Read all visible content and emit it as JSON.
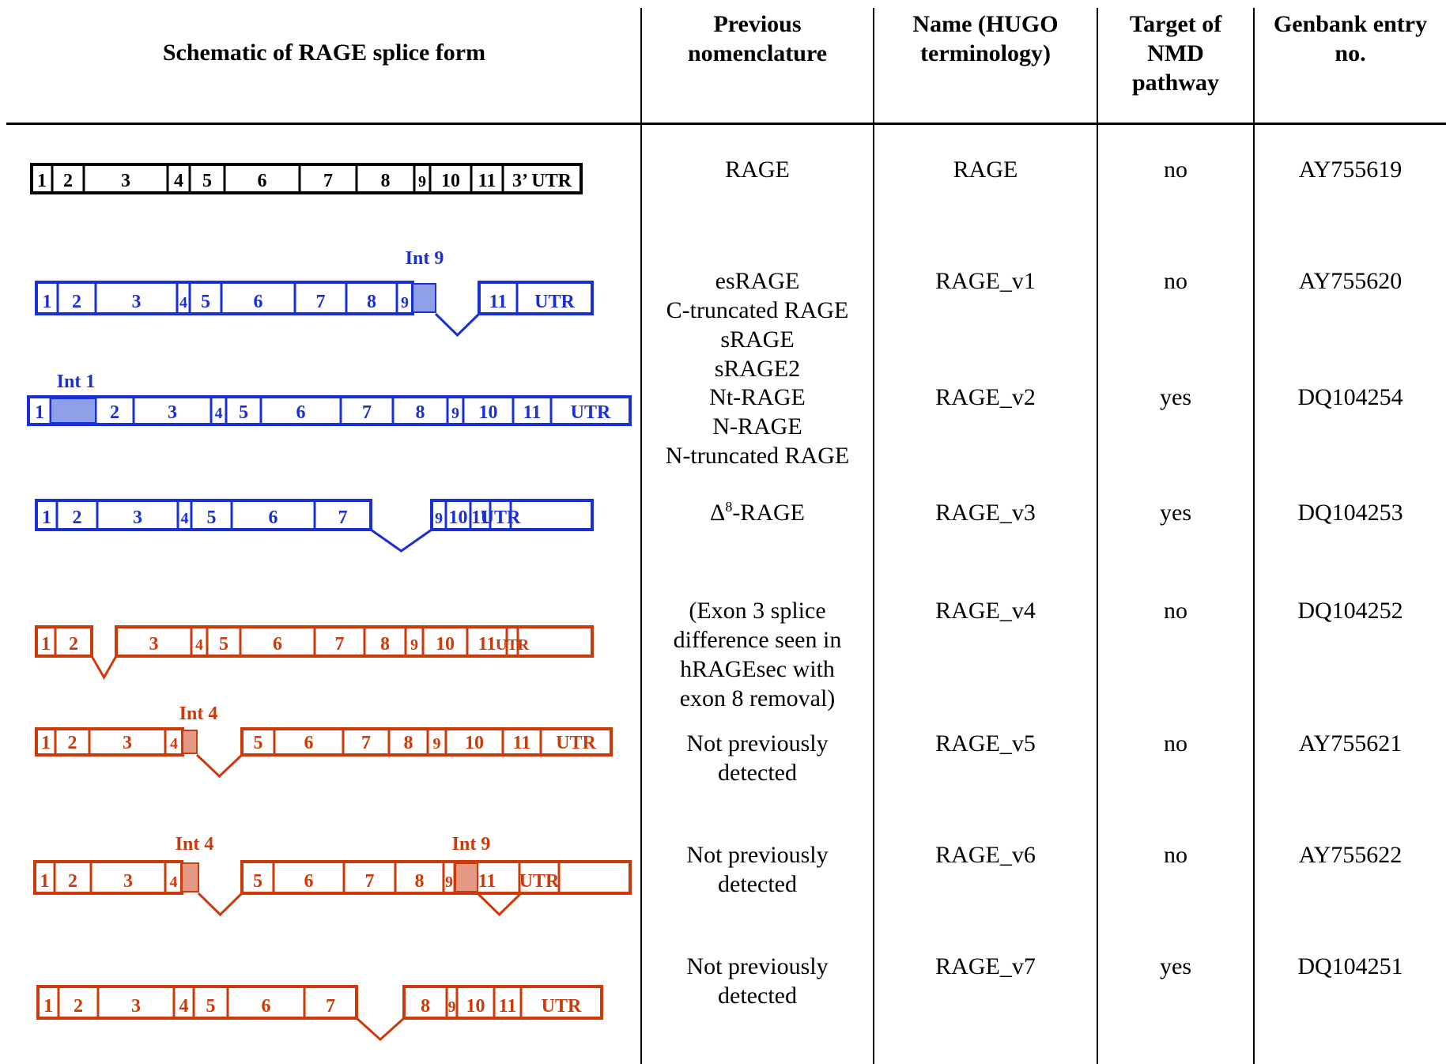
{
  "colors": {
    "black": "#000000",
    "blue": "#1a2fd4",
    "red": "#cc3a0a",
    "blue_fill": "#8fa0e8",
    "red_fill": "#e59a86"
  },
  "headers": {
    "schematic": "Schematic of RAGE splice form",
    "previous": "Previous\nnomenclature",
    "name": "Name (HUGO\nterminology)",
    "nmd": "Target of\nNMD\npathway",
    "genbank": "Genbank entry\nno."
  },
  "rows": [
    {
      "previous": [
        "RAGE"
      ],
      "name": "RAGE",
      "nmd": "no",
      "genbank": "AY755619",
      "schematic": {
        "color": "black",
        "insert_labels": [],
        "exons": [
          "1",
          "2",
          "3",
          "4",
          "5",
          "6",
          "7",
          "8",
          "9",
          "10",
          "11",
          "3’ UTR"
        ]
      }
    },
    {
      "previous": [
        "esRAGE",
        "C-truncated RAGE",
        "sRAGE",
        "sRAGE2"
      ],
      "name": "RAGE_v1",
      "nmd": "no",
      "genbank": "AY755620",
      "schematic": {
        "color": "blue",
        "insert_labels": [
          "Int 9"
        ],
        "exons": [
          "1",
          "2",
          "3",
          "4",
          "5",
          "6",
          "7",
          "8",
          "9",
          "11",
          "UTR"
        ]
      }
    },
    {
      "previous": [
        "Nt-RAGE",
        "N-RAGE",
        "N-truncated RAGE"
      ],
      "name": "RAGE_v2",
      "nmd": "yes",
      "genbank": "DQ104254",
      "schematic": {
        "color": "blue",
        "insert_labels": [
          "Int 1"
        ],
        "exons": [
          "1",
          "2",
          "3",
          "4",
          "5",
          "6",
          "7",
          "8",
          "9",
          "10",
          "11",
          "UTR"
        ]
      }
    },
    {
      "previous_html": "Δ<sup>8</sup>-RAGE",
      "previous": [],
      "name": "RAGE_v3",
      "nmd": "yes",
      "genbank": "DQ104253",
      "schematic": {
        "color": "blue",
        "insert_labels": [],
        "exons": [
          "1",
          "2",
          "3",
          "4",
          "5",
          "6",
          "7",
          "9",
          "10",
          "11",
          "UTR"
        ]
      }
    },
    {
      "previous": [
        "(Exon 3 splice",
        "difference seen in",
        "hRAGEsec with",
        "exon 8 removal)"
      ],
      "name": "RAGE_v4",
      "nmd": "no",
      "genbank": "DQ104252",
      "schematic": {
        "color": "red",
        "insert_labels": [],
        "exons": [
          "1",
          "2",
          "3",
          "4",
          "5",
          "6",
          "7",
          "8",
          "9",
          "10",
          "11",
          "UTR"
        ]
      }
    },
    {
      "previous": [
        "Not previously",
        "detected"
      ],
      "name": "RAGE_v5",
      "nmd": "no",
      "genbank": "AY755621",
      "schematic": {
        "color": "red",
        "insert_labels": [
          "Int 4"
        ],
        "exons": [
          "1",
          "2",
          "3",
          "4",
          "5",
          "6",
          "7",
          "8",
          "9",
          "10",
          "11",
          "UTR"
        ]
      }
    },
    {
      "previous": [
        "Not previously",
        "detected"
      ],
      "name": "RAGE_v6",
      "nmd": "no",
      "genbank": "AY755622",
      "schematic": {
        "color": "red",
        "insert_labels": [
          "Int 4",
          "Int 9"
        ],
        "exons": [
          "1",
          "2",
          "3",
          "4",
          "5",
          "6",
          "7",
          "8",
          "9",
          "11",
          "UTR"
        ]
      }
    },
    {
      "previous": [
        "Not previously",
        "detected"
      ],
      "name": "RAGE_v7",
      "nmd": "yes",
      "genbank": "DQ104251",
      "schematic": {
        "color": "red",
        "insert_labels": [],
        "exons": [
          "1",
          "2",
          "3",
          "4",
          "5",
          "6",
          "7",
          "8",
          "9",
          "10",
          "11",
          "UTR"
        ]
      }
    }
  ]
}
